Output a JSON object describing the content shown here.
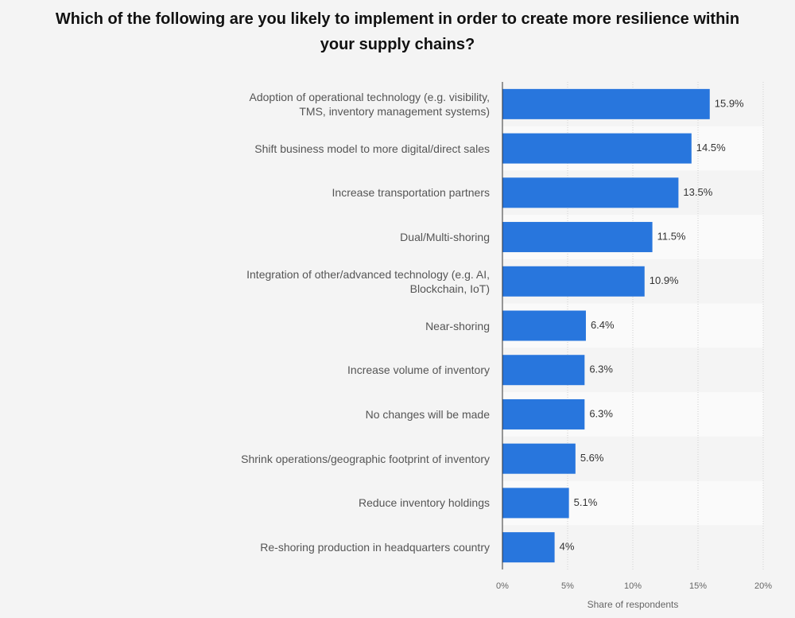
{
  "chart_data": {
    "type": "bar",
    "orientation": "horizontal",
    "title": "Which of the following are you likely to implement in order to create more resilience within your supply chains?",
    "categories": [
      "Adoption of operational technology (e.g. visibility, TMS, inventory management systems)",
      "Shift business model to more digital/direct sales",
      "Increase transportation partners",
      "Dual/Multi-shoring",
      "Integration of other/advanced technology (e.g. AI, Blockchain, IoT)",
      "Near-shoring",
      "Increase volume of inventory",
      "No changes will be made",
      "Shrink operations/geographic footprint of inventory",
      "Reduce inventory holdings",
      "Re-shoring production in headquarters country"
    ],
    "values": [
      15.9,
      14.5,
      13.5,
      11.5,
      10.9,
      6.4,
      6.3,
      6.3,
      5.6,
      5.1,
      4
    ],
    "value_labels": [
      "15.9%",
      "14.5%",
      "13.5%",
      "11.5%",
      "10.9%",
      "6.4%",
      "6.3%",
      "6.3%",
      "5.6%",
      "5.1%",
      "4%"
    ],
    "color": "#2876dd",
    "xlim": [
      0,
      20
    ],
    "xticks": [
      {
        "value": 0,
        "label": "0%"
      },
      {
        "value": 5,
        "label": "5%"
      },
      {
        "value": 10,
        "label": "10%"
      },
      {
        "value": 15,
        "label": "15%"
      },
      {
        "value": 20,
        "label": "20%"
      }
    ],
    "xlabel": "Share of respondents",
    "grid": true
  }
}
